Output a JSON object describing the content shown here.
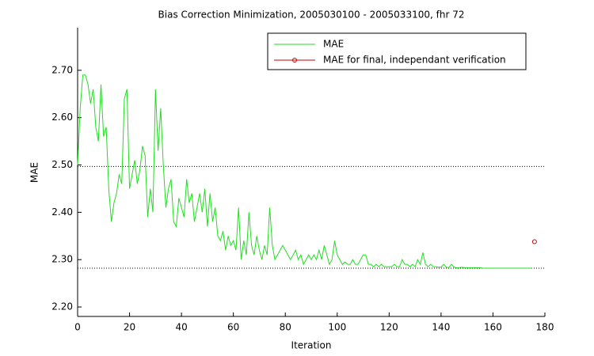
{
  "chart_data": {
    "type": "line",
    "title": "Bias Correction Minimization, 2005030100 - 2005033100, fhr 72",
    "xlabel": "Iteration",
    "ylabel": "MAE",
    "xlim": [
      0,
      180
    ],
    "xticks": [
      0,
      20,
      40,
      60,
      80,
      100,
      120,
      140,
      160,
      180
    ],
    "ylim": [
      2.18,
      2.79
    ],
    "yticks": [
      {
        "value": 2.2,
        "label": "2.20"
      },
      {
        "value": 2.3,
        "label": "2.30"
      },
      {
        "value": 2.4,
        "label": "2.40"
      },
      {
        "value": 2.5,
        "label": "2.50"
      },
      {
        "value": 2.6,
        "label": "2.60"
      },
      {
        "value": 2.7,
        "label": "2.70"
      }
    ],
    "reference_lines": [
      2.497,
      2.282
    ],
    "legend": "upper right",
    "series": [
      {
        "name": "MAE",
        "color": "#22dd22",
        "x": [
          0,
          1,
          2,
          3,
          4,
          5,
          6,
          7,
          8,
          9,
          10,
          11,
          12,
          13,
          14,
          15,
          16,
          17,
          18,
          19,
          20,
          21,
          22,
          23,
          24,
          25,
          26,
          27,
          28,
          29,
          30,
          31,
          32,
          33,
          34,
          35,
          36,
          37,
          38,
          39,
          40,
          41,
          42,
          43,
          44,
          45,
          46,
          47,
          48,
          49,
          50,
          51,
          52,
          53,
          54,
          55,
          56,
          57,
          58,
          59,
          60,
          61,
          62,
          63,
          64,
          65,
          66,
          67,
          68,
          69,
          70,
          71,
          72,
          73,
          74,
          75,
          76,
          77,
          78,
          79,
          80,
          81,
          82,
          83,
          84,
          85,
          86,
          87,
          88,
          89,
          90,
          91,
          92,
          93,
          94,
          95,
          96,
          97,
          98,
          99,
          100,
          101,
          102,
          103,
          104,
          105,
          106,
          107,
          108,
          109,
          110,
          111,
          112,
          113,
          114,
          115,
          116,
          117,
          118,
          119,
          120,
          121,
          122,
          123,
          124,
          125,
          126,
          127,
          128,
          129,
          130,
          131,
          132,
          133,
          134,
          135,
          136,
          137,
          138,
          139,
          140,
          141,
          142,
          143,
          144,
          145,
          146,
          147,
          148,
          149,
          150,
          151,
          152,
          153,
          154,
          155,
          156,
          157,
          158,
          159,
          160,
          161,
          162,
          163,
          164,
          165,
          166,
          167,
          168,
          169,
          170,
          171,
          172,
          173,
          174,
          175
        ],
        "values": [
          2.5,
          2.62,
          2.69,
          2.69,
          2.67,
          2.63,
          2.66,
          2.58,
          2.55,
          2.67,
          2.56,
          2.58,
          2.45,
          2.38,
          2.42,
          2.44,
          2.48,
          2.46,
          2.64,
          2.66,
          2.45,
          2.48,
          2.51,
          2.46,
          2.49,
          2.54,
          2.52,
          2.39,
          2.45,
          2.4,
          2.66,
          2.53,
          2.62,
          2.5,
          2.41,
          2.45,
          2.47,
          2.38,
          2.37,
          2.43,
          2.41,
          2.39,
          2.47,
          2.42,
          2.44,
          2.38,
          2.41,
          2.44,
          2.4,
          2.45,
          2.37,
          2.44,
          2.38,
          2.41,
          2.35,
          2.34,
          2.36,
          2.32,
          2.35,
          2.33,
          2.34,
          2.32,
          2.41,
          2.3,
          2.34,
          2.31,
          2.4,
          2.33,
          2.31,
          2.35,
          2.32,
          2.3,
          2.33,
          2.31,
          2.41,
          2.33,
          2.3,
          2.31,
          2.32,
          2.33,
          2.32,
          2.31,
          2.3,
          2.31,
          2.32,
          2.3,
          2.31,
          2.29,
          2.3,
          2.31,
          2.3,
          2.31,
          2.3,
          2.32,
          2.3,
          2.33,
          2.31,
          2.29,
          2.3,
          2.34,
          2.31,
          2.3,
          2.29,
          2.295,
          2.29,
          2.29,
          2.3,
          2.29,
          2.29,
          2.3,
          2.31,
          2.31,
          2.29,
          2.29,
          2.285,
          2.29,
          2.285,
          2.29,
          2.285,
          2.285,
          2.285,
          2.285,
          2.29,
          2.285,
          2.285,
          2.3,
          2.29,
          2.29,
          2.285,
          2.29,
          2.285,
          2.3,
          2.29,
          2.315,
          2.29,
          2.285,
          2.29,
          2.285,
          2.285,
          2.284,
          2.284,
          2.29,
          2.284,
          2.283,
          2.29,
          2.284,
          2.283,
          2.283,
          2.284,
          2.283,
          2.283,
          2.283,
          2.283,
          2.283,
          2.283,
          2.283,
          2.282,
          2.282,
          2.282,
          2.282,
          2.282,
          2.282,
          2.282,
          2.282,
          2.282,
          2.282,
          2.282,
          2.282,
          2.282,
          2.282,
          2.282,
          2.282,
          2.282,
          2.282,
          2.282,
          2.282
        ]
      },
      {
        "name": "MAE for final, independant verification",
        "color": "#cc0000",
        "marker": "o",
        "x": [
          176
        ],
        "values": [
          2.338
        ]
      }
    ]
  }
}
